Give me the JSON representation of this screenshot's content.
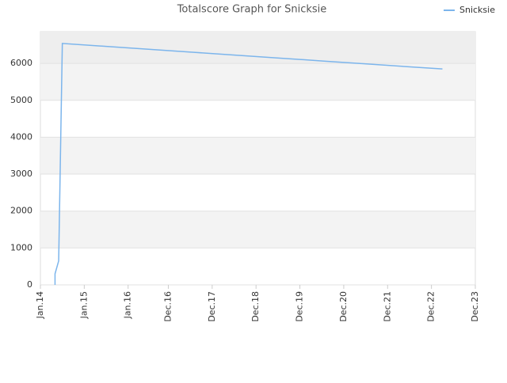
{
  "chart_data": {
    "type": "line",
    "title": "Totalscore Graph for Snicksie",
    "x": [
      "2014-05",
      "2014-05",
      "2014-06",
      "2014-07",
      "2015-07",
      "2016-07",
      "2017-07",
      "2018-07",
      "2019-07",
      "2020-07",
      "2021-07",
      "2022-07",
      "2023-03"
    ],
    "series": [
      {
        "name": "Snicksie",
        "color": "#7cb5ec",
        "values": [
          0,
          300,
          650,
          6540,
          6460,
          6380,
          6300,
          6220,
          6140,
          6060,
          5980,
          5900,
          5850
        ]
      }
    ],
    "xlim": [
      "2014-01",
      "2023-12"
    ],
    "xticks": [
      {
        "value": "2014-01",
        "label": "Jan.14"
      },
      {
        "value": "2015-01",
        "label": "Jan.15"
      },
      {
        "value": "2016-01",
        "label": "Jan.16"
      },
      {
        "value": "2016-12",
        "label": "Dec.16"
      },
      {
        "value": "2017-12",
        "label": "Dec.17"
      },
      {
        "value": "2018-12",
        "label": "Dec.18"
      },
      {
        "value": "2019-12",
        "label": "Dec.19"
      },
      {
        "value": "2020-12",
        "label": "Dec.20"
      },
      {
        "value": "2021-12",
        "label": "Dec.21"
      },
      {
        "value": "2022-12",
        "label": "Dec.22"
      },
      {
        "value": "2023-12",
        "label": "Dec.23"
      }
    ],
    "ylim": [
      0,
      6860
    ],
    "yticks": [
      0,
      1000,
      2000,
      3000,
      4000,
      5000,
      6000
    ],
    "grid": true,
    "legend": "top-right"
  }
}
